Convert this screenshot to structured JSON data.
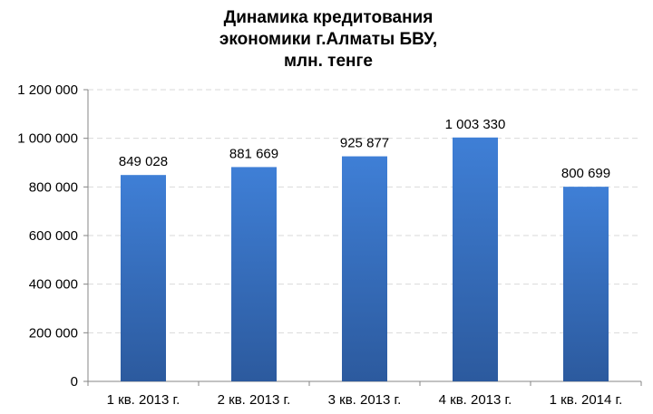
{
  "chart_data": {
    "type": "bar",
    "title_lines": [
      "Динамика кредитования",
      "экономики г.Алматы БВУ,",
      "млн. тенге"
    ],
    "categories": [
      "1 кв. 2013 г.",
      "2 кв. 2013 г.",
      "3 кв. 2013 г.",
      "4 кв. 2013 г.",
      "1 кв. 2014 г."
    ],
    "values": [
      849028,
      881669,
      925877,
      1003330,
      800699
    ],
    "data_labels": [
      "849 028",
      "881 669",
      "925 877",
      "1 003 330",
      "800 699"
    ],
    "ylim": [
      0,
      1200000
    ],
    "yticks": [
      0,
      200000,
      400000,
      600000,
      800000,
      1000000,
      1200000
    ],
    "ytick_labels": [
      "0",
      "200 000",
      "400 000",
      "600 000",
      "800 000",
      "1 000 000",
      "1 200 000"
    ],
    "grid": true,
    "bar_color": "#3a74c8"
  }
}
